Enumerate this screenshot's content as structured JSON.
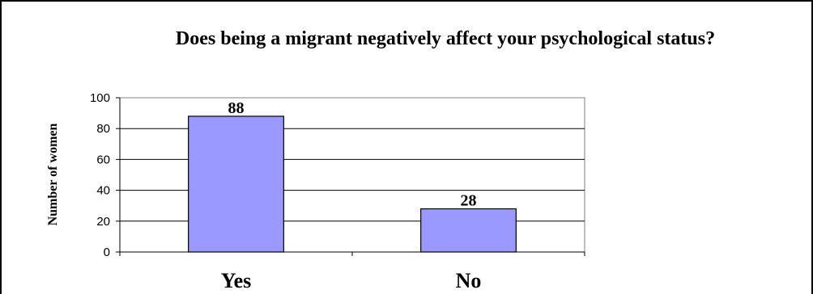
{
  "chart_data": {
    "type": "bar",
    "title": "Does being a migrant negatively affect your psychological status?",
    "xlabel": "",
    "ylabel": "Number of women",
    "categories": [
      "Yes",
      "No"
    ],
    "values": [
      88,
      28
    ],
    "data_labels": [
      "88",
      "28"
    ],
    "ylim": [
      0,
      100
    ],
    "yticks": [
      0,
      20,
      40,
      60,
      80,
      100
    ],
    "ytick_labels": [
      "0",
      "20",
      "40",
      "60",
      "80",
      "100"
    ],
    "grid": true,
    "legend": "none",
    "colors": {
      "bar_fill": "#9999ff",
      "bar_stroke": "#000000",
      "gridline": "#000000",
      "plot_border": "#808080",
      "frame_border": "#000000"
    }
  }
}
